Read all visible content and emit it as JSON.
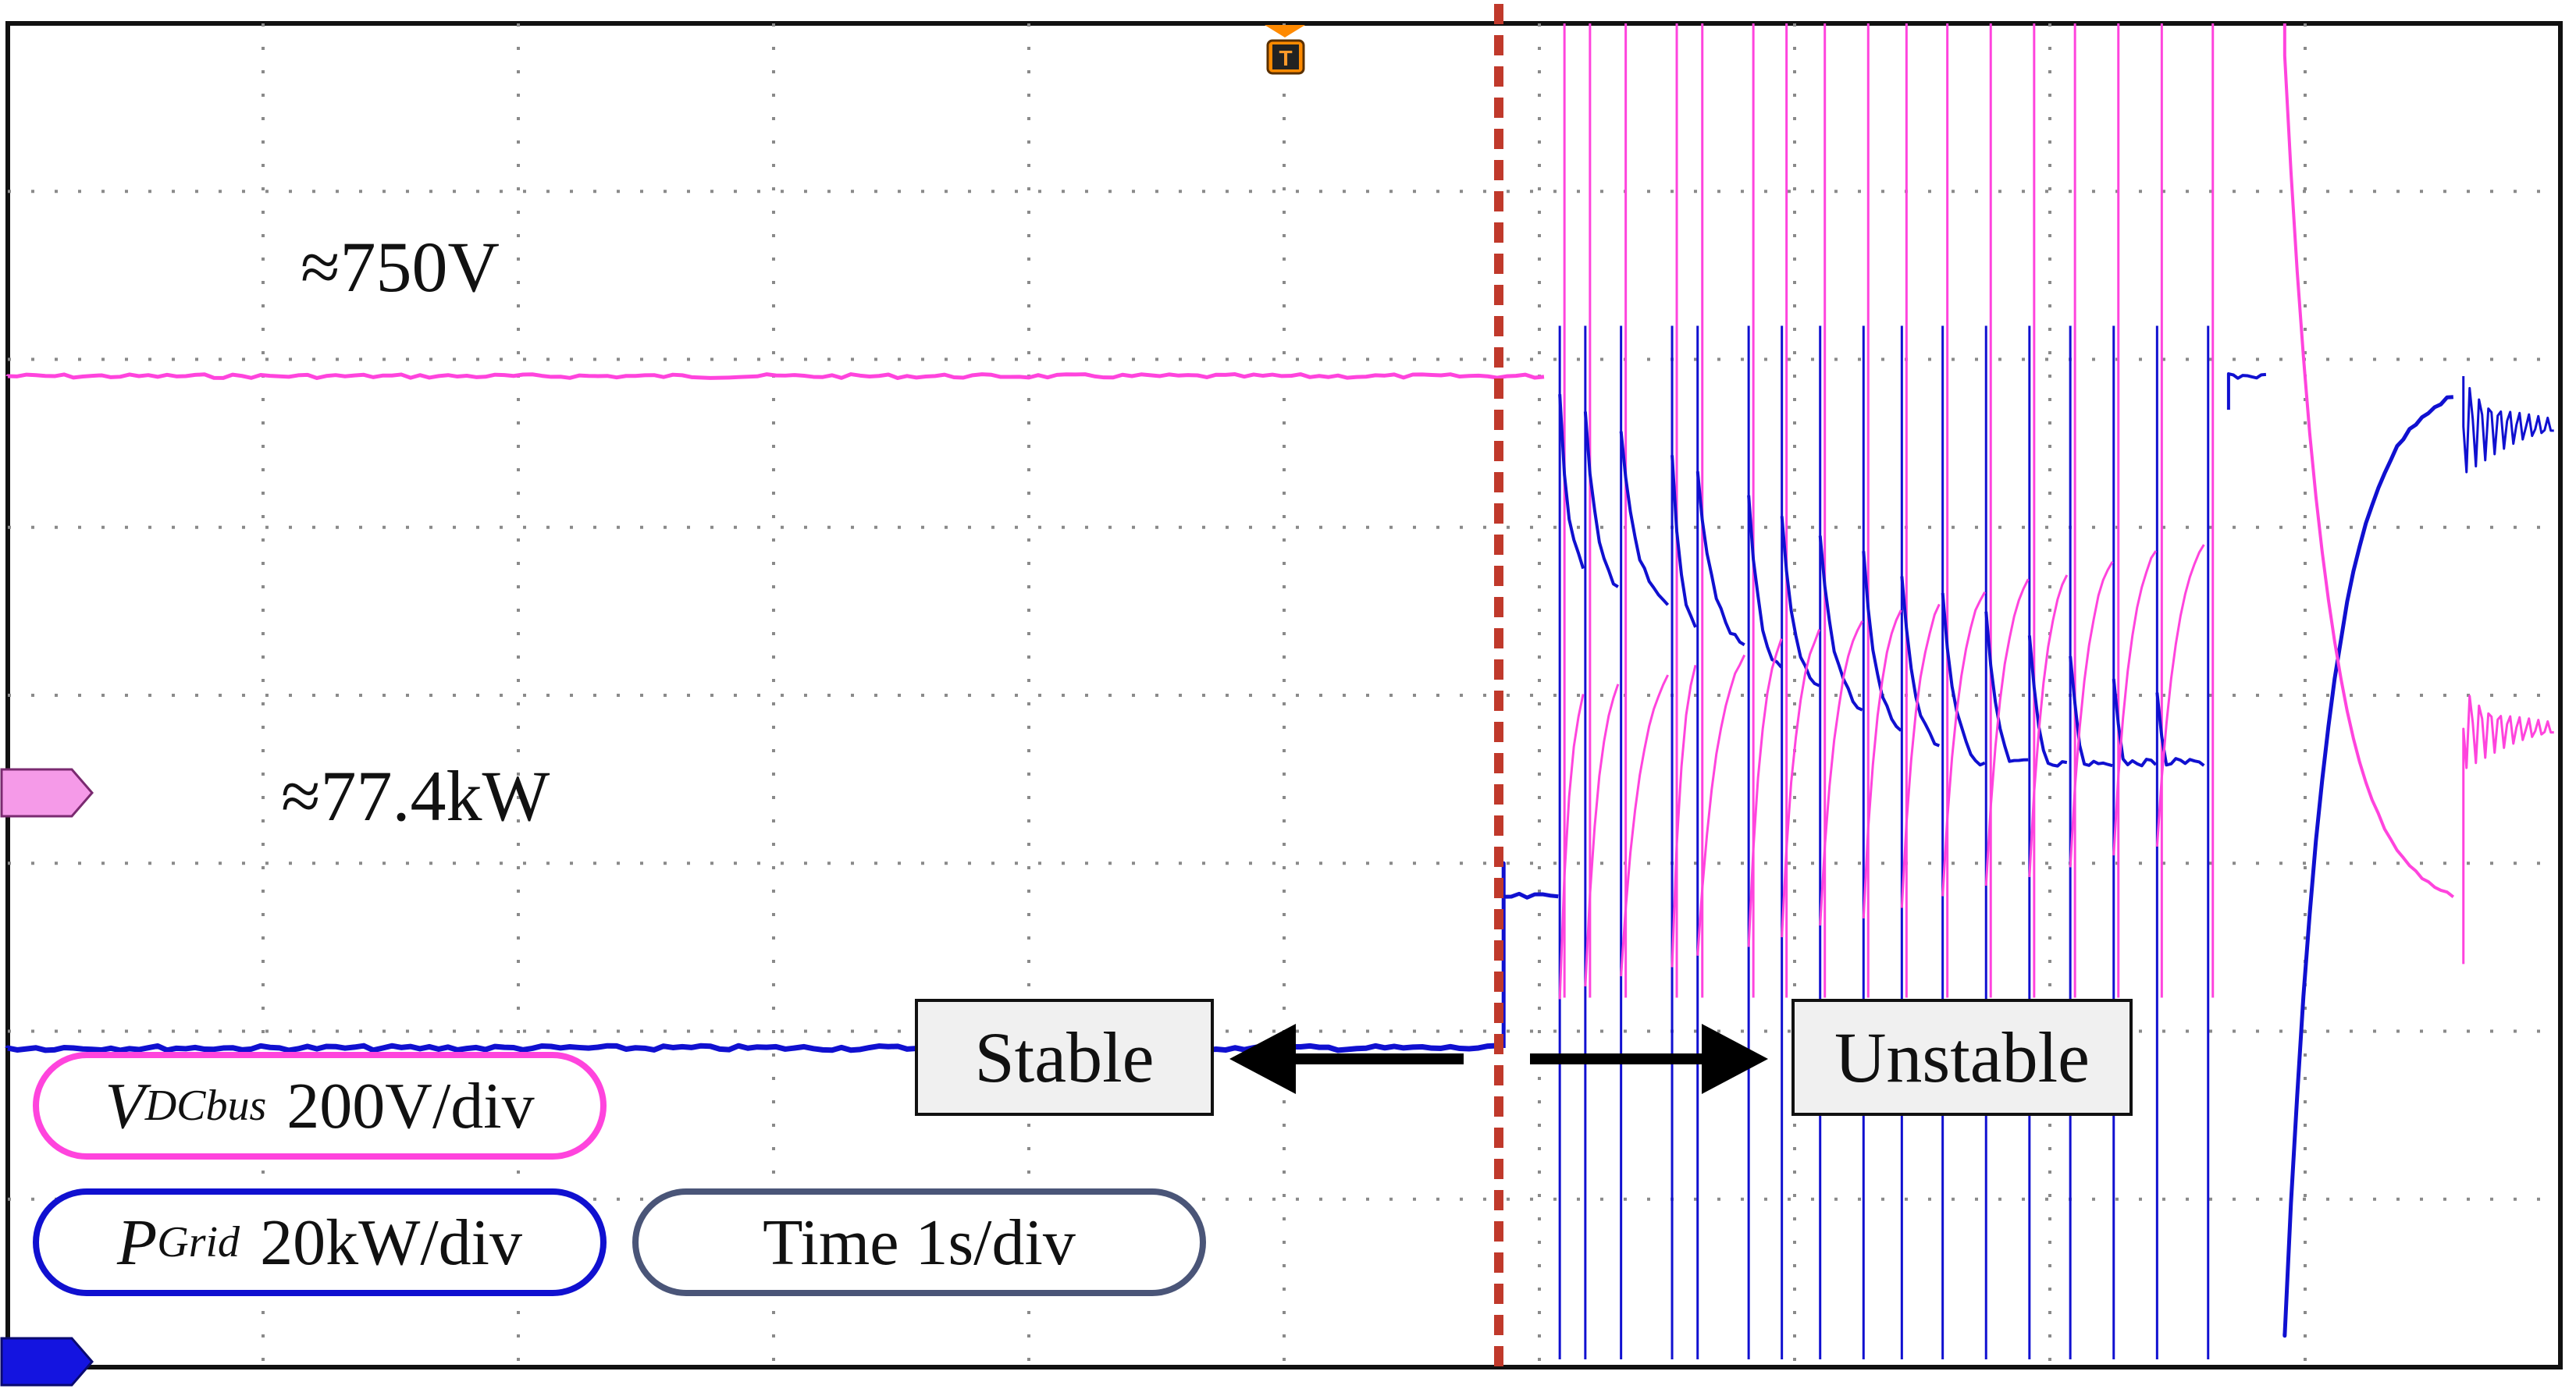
{
  "chart_data": {
    "type": "line",
    "title": "",
    "xlabel": "",
    "ylabel": "",
    "divisions": {
      "x": 10,
      "y": 8
    },
    "grid": true,
    "series": [
      {
        "name": "V_DCbus",
        "color": "#ff44dd",
        "scale": "200V/div"
      },
      {
        "name": "P_Grid",
        "color": "#1010d0",
        "scale": "20kW/div"
      }
    ],
    "annotations": {
      "voltage_level": "≈750V",
      "power_level": "≈77.4kW",
      "stable": "Stable",
      "unstable": "Unstable",
      "trigger_marker": "T"
    },
    "legend": {
      "v_symbol": "V",
      "v_sub": "DCbus",
      "v_scale": "200V/div",
      "p_symbol": "P",
      "p_sub": "Grid",
      "p_scale": "20kW/div",
      "time": "Time 1s/div"
    },
    "colors": {
      "frame": "#111111",
      "grid": "#8a8a8a",
      "voltage": "#ff44dd",
      "power": "#1010d0",
      "separator": "#c0392b",
      "legend_v_border": "#ff44dd",
      "legend_p_border": "#1010d0",
      "legend_t_border": "#4a5578"
    }
  }
}
